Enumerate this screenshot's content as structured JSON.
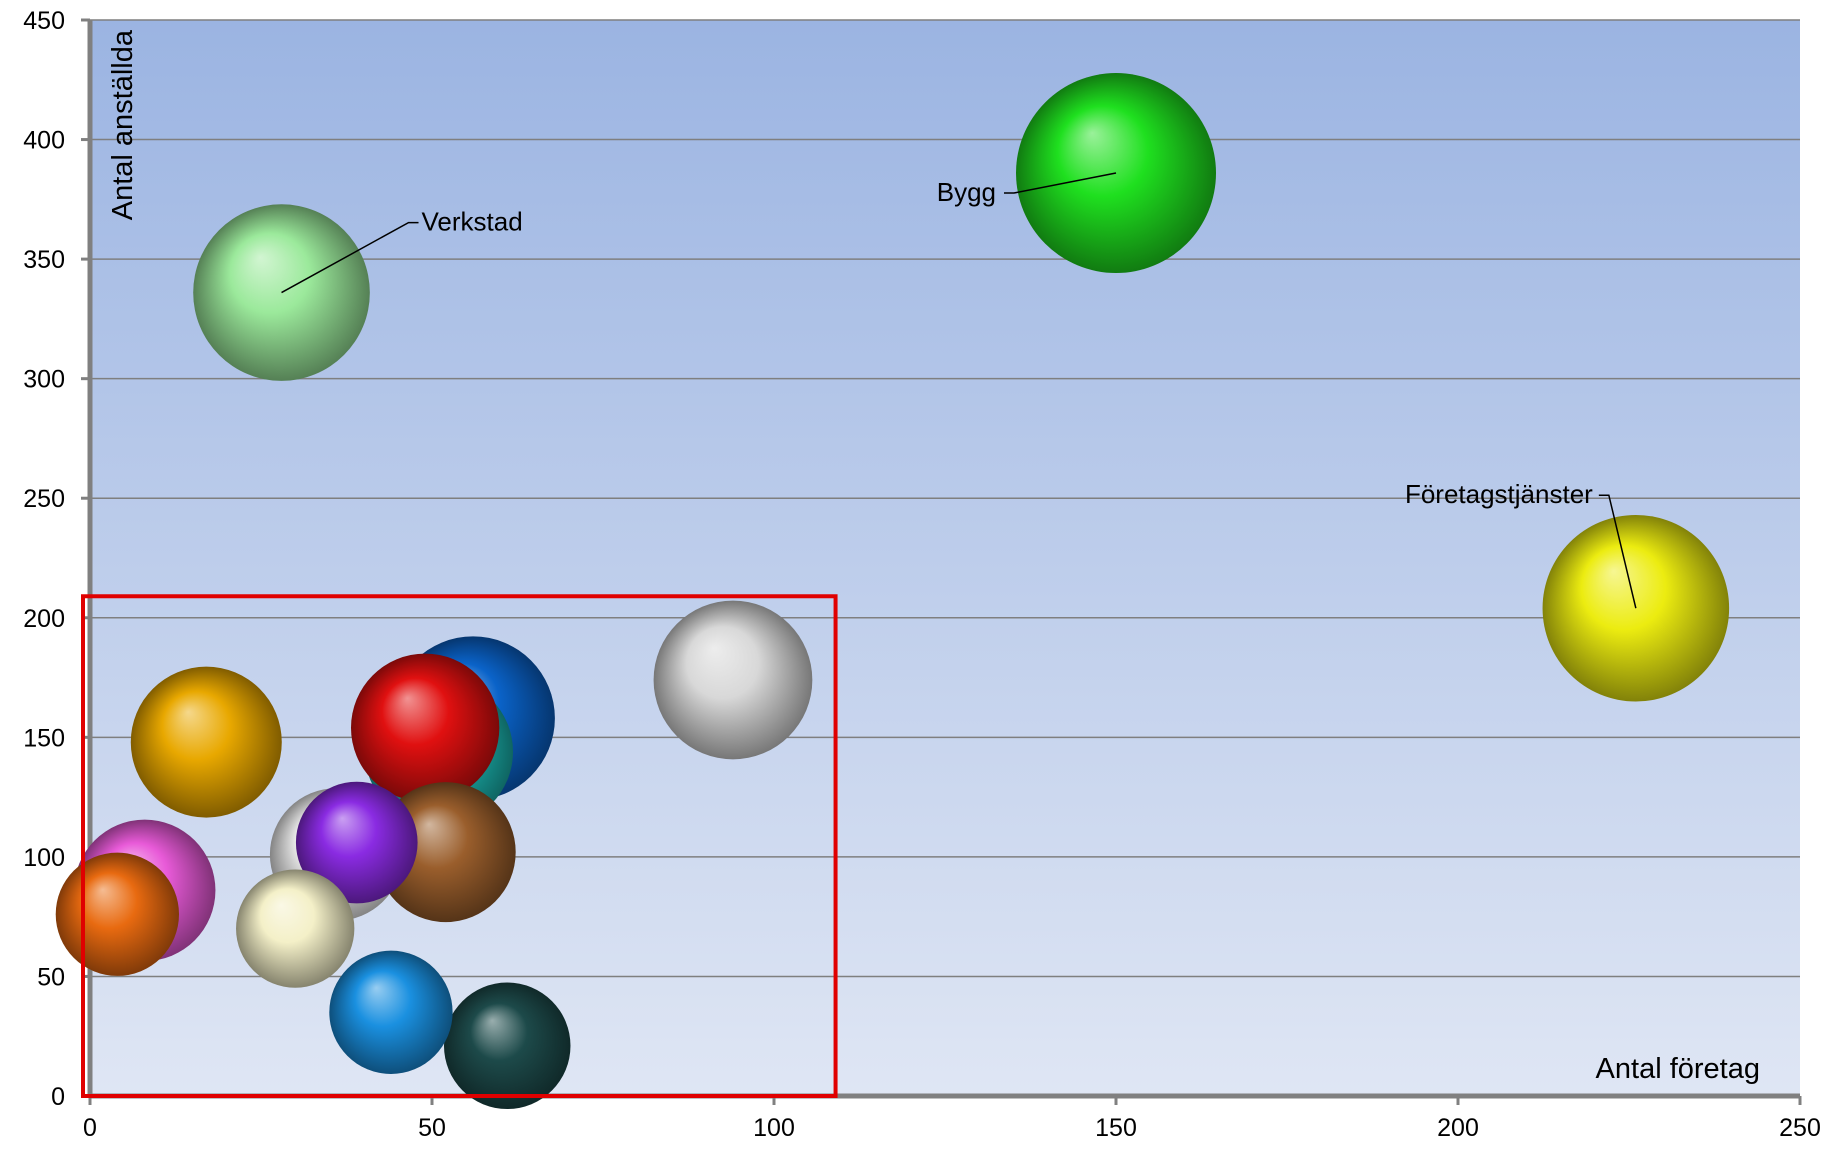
{
  "chart_data": {
    "type": "scatter",
    "subtype": "bubble",
    "title": "",
    "xlabel": "Antal företag",
    "ylabel": "Antal anställda",
    "xlim": [
      0,
      250
    ],
    "ylim": [
      0,
      450
    ],
    "xticks": [
      0,
      50,
      100,
      150,
      200,
      250
    ],
    "yticks": [
      0,
      50,
      100,
      150,
      200,
      250,
      300,
      350,
      400,
      450
    ],
    "grid": "horizontal",
    "highlight_region": {
      "x": [
        0,
        109
      ],
      "y": [
        0,
        209
      ],
      "color": "#e00000"
    },
    "points": [
      {
        "label": "Bygg",
        "x": 150,
        "y": 386,
        "size": 100,
        "color": "#1fe01f"
      },
      {
        "label": "Verkstad",
        "x": 28,
        "y": 336,
        "size": 78,
        "color": "#9be99b"
      },
      {
        "label": "Företagstjänster",
        "x": 226,
        "y": 204,
        "size": 87,
        "color": "#ecec10"
      },
      {
        "label": "",
        "x": 94,
        "y": 174,
        "size": 63,
        "color": "#d8d8d8"
      },
      {
        "label": "",
        "x": 56,
        "y": 158,
        "size": 67,
        "color": "#0a63c9"
      },
      {
        "label": "",
        "x": 51,
        "y": 144,
        "size": 55,
        "color": "#1bb8b3"
      },
      {
        "label": "",
        "x": 49,
        "y": 154,
        "size": 55,
        "color": "#e01010"
      },
      {
        "label": "",
        "x": 17,
        "y": 148,
        "size": 57,
        "color": "#e8a800"
      },
      {
        "label": "",
        "x": 52,
        "y": 102,
        "size": 49,
        "color": "#9a5e2c"
      },
      {
        "label": "",
        "x": 36,
        "y": 101,
        "size": 44,
        "color": "#f0f0f0"
      },
      {
        "label": "",
        "x": 39,
        "y": 106,
        "size": 37,
        "color": "#8a2be2"
      },
      {
        "label": "",
        "x": 8,
        "y": 86,
        "size": 50,
        "color": "#e85ad8"
      },
      {
        "label": "",
        "x": 4,
        "y": 76,
        "size": 38,
        "color": "#e86a10"
      },
      {
        "label": "",
        "x": 30,
        "y": 70,
        "size": 35,
        "color": "#f4f0c8"
      },
      {
        "label": "",
        "x": 44,
        "y": 35,
        "size": 38,
        "color": "#1a90e0"
      },
      {
        "label": "",
        "x": 61,
        "y": 21,
        "size": 40,
        "color": "#1d4a4a"
      }
    ]
  }
}
